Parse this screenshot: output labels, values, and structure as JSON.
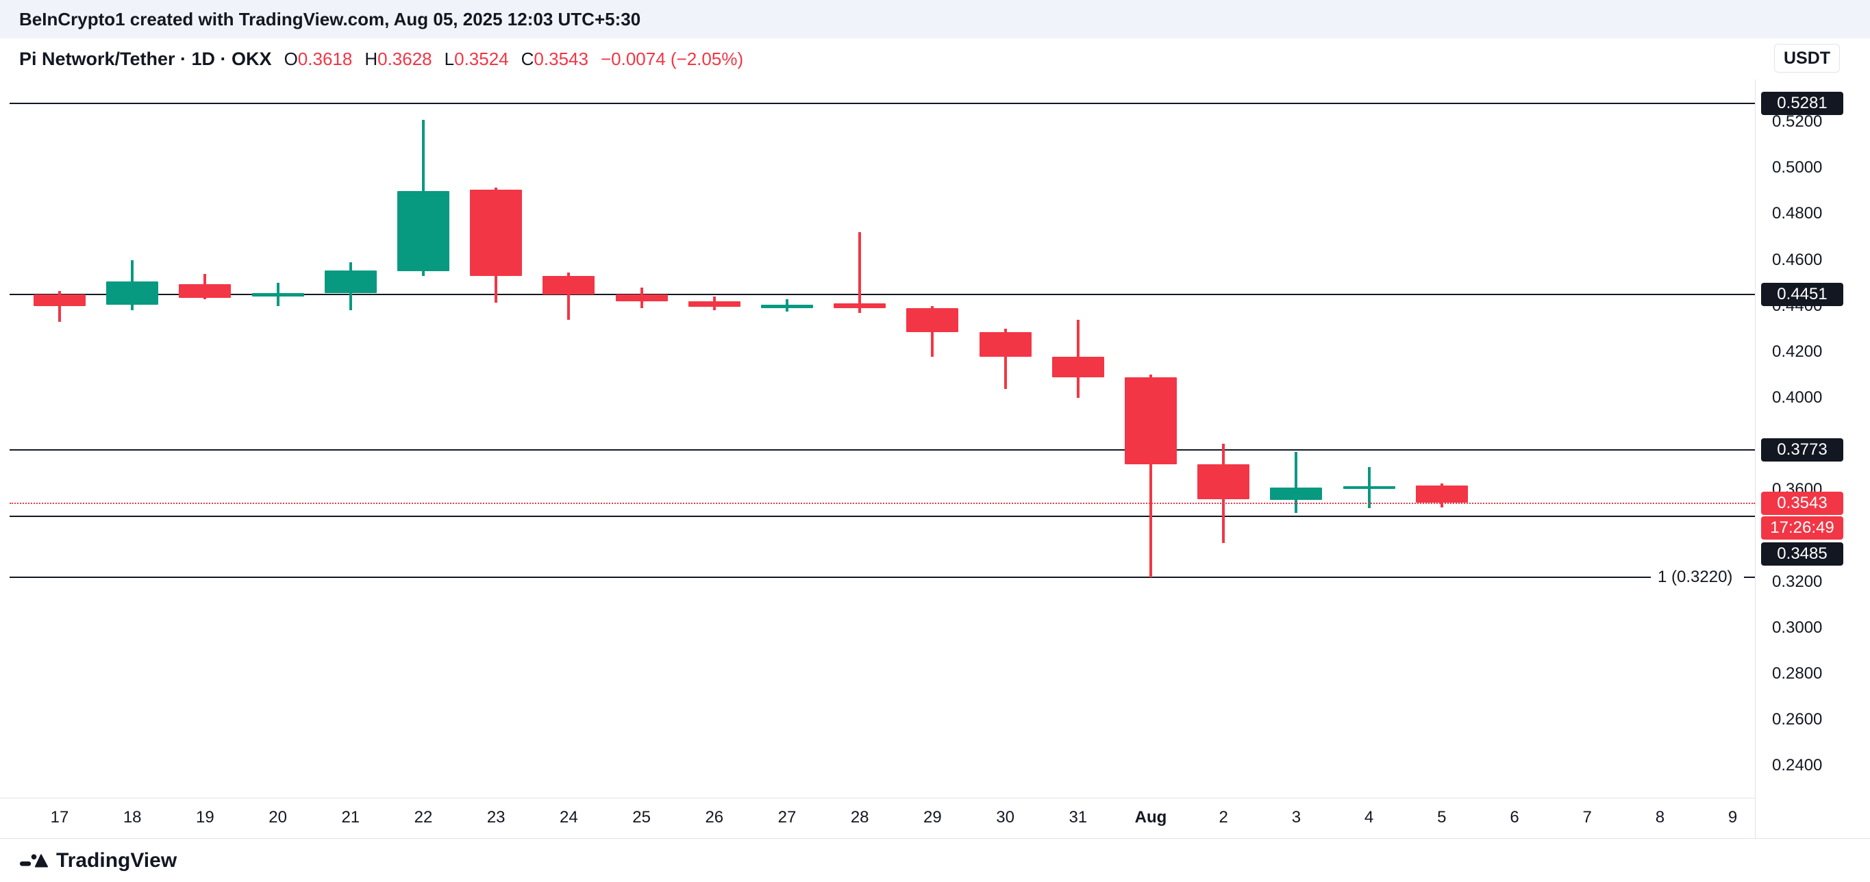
{
  "topbar": {
    "text": "BeInCrypto1 created with TradingView.com, Aug 05, 2025 12:03 UTC+5:30"
  },
  "header": {
    "title": "Pi Network/Tether · 1D · OKX",
    "currency": "USDT",
    "ohlc": [
      {
        "label": "O",
        "value": "0.3618"
      },
      {
        "label": "H",
        "value": "0.3628"
      },
      {
        "label": "L",
        "value": "0.3524"
      },
      {
        "label": "C",
        "value": "0.3543"
      }
    ],
    "change": "−0.0074 (−2.05%)"
  },
  "footer": {
    "brand": "TradingView"
  },
  "chart_data": {
    "type": "candlestick",
    "symbol": "Pi Network/Tether",
    "interval": "1D",
    "exchange": "OKX",
    "currency": "USDT",
    "ylim": [
      0.2261,
      0.5373
    ],
    "x_labels": [
      "17",
      "18",
      "19",
      "20",
      "21",
      "22",
      "23",
      "24",
      "25",
      "26",
      "27",
      "28",
      "29",
      "30",
      "31",
      "Aug",
      "2",
      "3",
      "4",
      "5",
      "6",
      "7",
      "8",
      "9"
    ],
    "bold_x_label": "Aug",
    "candles": [
      {
        "date": "Jul 17",
        "open": 0.445,
        "high": 0.4465,
        "low": 0.433,
        "close": 0.44
      },
      {
        "date": "Jul 18",
        "open": 0.4405,
        "high": 0.46,
        "low": 0.438,
        "close": 0.4505
      },
      {
        "date": "Jul 19",
        "open": 0.4495,
        "high": 0.454,
        "low": 0.443,
        "close": 0.4435
      },
      {
        "date": "Jul 20",
        "open": 0.444,
        "high": 0.45,
        "low": 0.44,
        "close": 0.4455
      },
      {
        "date": "Jul 21",
        "open": 0.4455,
        "high": 0.459,
        "low": 0.438,
        "close": 0.4555
      },
      {
        "date": "Jul 22",
        "open": 0.455,
        "high": 0.521,
        "low": 0.453,
        "close": 0.49
      },
      {
        "date": "Jul 23",
        "open": 0.4905,
        "high": 0.4915,
        "low": 0.4415,
        "close": 0.453
      },
      {
        "date": "Jul 24",
        "open": 0.453,
        "high": 0.4545,
        "low": 0.434,
        "close": 0.445
      },
      {
        "date": "Jul 25",
        "open": 0.445,
        "high": 0.448,
        "low": 0.439,
        "close": 0.442
      },
      {
        "date": "Jul 26",
        "open": 0.442,
        "high": 0.444,
        "low": 0.438,
        "close": 0.4395
      },
      {
        "date": "Jul 27",
        "open": 0.439,
        "high": 0.443,
        "low": 0.4375,
        "close": 0.4405
      },
      {
        "date": "Jul 28",
        "open": 0.441,
        "high": 0.472,
        "low": 0.437,
        "close": 0.439
      },
      {
        "date": "Jul 29",
        "open": 0.439,
        "high": 0.44,
        "low": 0.418,
        "close": 0.4285
      },
      {
        "date": "Jul 30",
        "open": 0.4285,
        "high": 0.43,
        "low": 0.404,
        "close": 0.418
      },
      {
        "date": "Jul 31",
        "open": 0.418,
        "high": 0.434,
        "low": 0.4,
        "close": 0.409
      },
      {
        "date": "Aug 1",
        "open": 0.409,
        "high": 0.41,
        "low": 0.322,
        "close": 0.371
      },
      {
        "date": "Aug 2",
        "open": 0.371,
        "high": 0.38,
        "low": 0.337,
        "close": 0.356
      },
      {
        "date": "Aug 3",
        "open": 0.3555,
        "high": 0.3765,
        "low": 0.35,
        "close": 0.361
      },
      {
        "date": "Aug 4",
        "open": 0.3605,
        "high": 0.37,
        "low": 0.352,
        "close": 0.3615
      },
      {
        "date": "Aug 5",
        "open": 0.3618,
        "high": 0.3628,
        "low": 0.3524,
        "close": 0.3543
      }
    ],
    "horizontal_levels": [
      {
        "price": 0.5281,
        "label": "0.5281"
      },
      {
        "price": 0.4451,
        "label": "0.4451"
      },
      {
        "price": 0.3773,
        "label": "0.3773"
      },
      {
        "price": 0.3485,
        "label": "0.3485"
      }
    ],
    "trend_line": {
      "price": 0.322,
      "label": "1 (0.3220)"
    },
    "last_price": {
      "value": 0.3543,
      "label": "0.3543",
      "countdown": "17:26:49"
    },
    "y_ticks": [
      "0.5200",
      "0.5000",
      "0.4800",
      "0.4600",
      "0.4400",
      "0.4200",
      "0.4000",
      "0.3600",
      "0.3200",
      "0.3000",
      "0.2800",
      "0.2600",
      "0.2400"
    ],
    "colors": {
      "up": "#089981",
      "down": "#F23645",
      "line": "#131722",
      "badge_bg": "#131722",
      "last_price": "#F23645"
    }
  }
}
